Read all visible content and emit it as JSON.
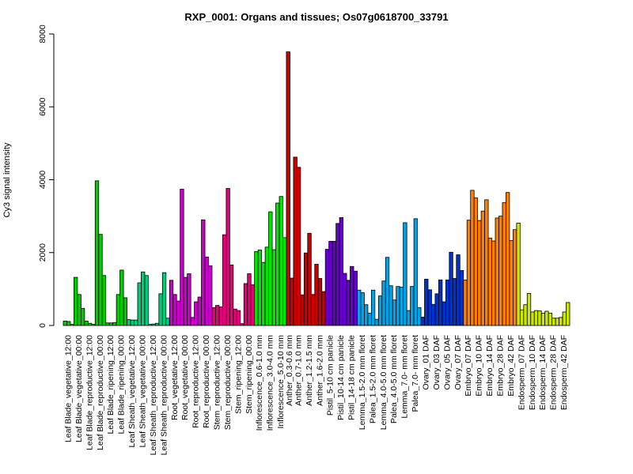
{
  "chart_data": {
    "type": "bar",
    "title": "RXP_0001: Organs and tissues; Os07g0618700_33791",
    "xlabel": "",
    "ylabel": "Cy3 signal intensity",
    "ylim": [
      0,
      8000
    ],
    "yticks": [
      0,
      2000,
      4000,
      6000,
      8000
    ],
    "grid": false,
    "legend": "none",
    "categories": [
      "Leaf Blade_vegetative_12:00",
      "Leaf Blade_vegetative_00:00",
      "Leaf Blade_reproductive_12:00",
      "Leaf Blade_reproductive_00:00",
      "Leaf Blade_ripening_12:00",
      "Leaf Blade_ripening_00:00",
      "Leaf Sheath_vegetative_12:00",
      "Leaf Sheath_vegetative_00:00",
      "Leaf Sheath_reproductive_12:00",
      "Leaf Sheath_reproductive_00:00",
      "Root_vegetative_12:00",
      "Root_vegetative_00:00",
      "Root_reproductive_12:00",
      "Root_reproductive_00:00",
      "Stem_reproductive_12:00",
      "Stem_reproductive_00:00",
      "Stem_ripening_12:00",
      "Stem_ripening_00:00",
      "Inflorescence_0.6-1.0 mm",
      "Inflorescence_3.0-4.0 mm",
      "Inflorescence_5.0-10 mm",
      "Anther_0.3-0.6 mm",
      "Anther_0.7-1.0 mm",
      "Anther_1.2-1.5 mm",
      "Anther_1.6-2.0 mm",
      "Pistil_5-10 cm panicle",
      "Pistil_10-14 cm panicle",
      "Pistil_14-18 cm panicle",
      "Lemma_1.5-2.0 mm floret",
      "Palea_1.5-2.0 mm floret",
      "Lemma_4.0-5.0 mm floret",
      "Palea_4.0-5.0 mm floret",
      "Lemma_7.0- mm floret",
      "Palea_7.0- mm floret",
      "Ovary_01 DAF",
      "Ovary_03 DAF",
      "Ovary_05 DAF",
      "Ovary_07 DAF",
      "Embryo_07 DAF",
      "Embryo_10 DAF",
      "Embryo_14 DAF",
      "Embryo_28 DAF",
      "Embryo_42 DAF",
      "Endosperm_07 DAF",
      "Endosperm_10 DAF",
      "Endosperm_14 DAF",
      "Endosperm_28 DAF",
      "Endosperm_42 DAF"
    ],
    "replicate_values": [
      [
        120,
        110,
        30
      ],
      [
        1320,
        850,
        470
      ],
      [
        120,
        60,
        30
      ],
      [
        3970,
        2500,
        1370
      ],
      [
        70,
        70,
        80
      ],
      [
        850,
        1520,
        760
      ],
      [
        160,
        150,
        150
      ],
      [
        1170,
        1470,
        1370
      ],
      [
        30,
        40,
        60
      ],
      [
        870,
        1450,
        200
      ],
      [
        1240,
        850,
        670
      ],
      [
        3740,
        1320,
        1420
      ],
      [
        220,
        650,
        780
      ],
      [
        2900,
        1880,
        1640
      ],
      [
        490,
        550,
        510
      ],
      [
        2490,
        3760,
        1660
      ],
      [
        450,
        410,
        50
      ],
      [
        1150,
        1420,
        1120
      ],
      [
        2030,
        2070,
        1730
      ],
      [
        2150,
        3120,
        2080
      ],
      [
        3360,
        3540,
        2410
      ],
      [
        7510,
        1300
      ],
      [
        4620,
        4340,
        840
      ],
      [
        1990,
        2530,
        850
      ],
      [
        1680,
        1290,
        930
      ],
      [
        2090,
        2310,
        2310
      ],
      [
        2800,
        2960,
        1430
      ],
      [
        1240,
        1620,
        1490
      ],
      [
        970,
        900,
        570
      ],
      [
        340,
        970,
        170
      ],
      [
        810,
        1220,
        1870
      ],
      [
        1090,
        700,
        1070
      ],
      [
        1050,
        2820,
        410
      ],
      [
        1070,
        2930,
        490
      ],
      [
        230,
        1270,
        980
      ],
      [
        580,
        870,
        1250
      ],
      [
        650,
        1250,
        2010
      ],
      [
        1290,
        1940,
        1510
      ],
      [
        1250,
        2890,
        3710
      ],
      [
        3500,
        2880,
        3140
      ],
      [
        3450,
        2400,
        2320
      ],
      [
        2950,
        3000,
        3370
      ],
      [
        3650,
        2330,
        2630
      ],
      [
        2810,
        430,
        570
      ],
      [
        880,
        370,
        410
      ],
      [
        400,
        340,
        390
      ],
      [
        340,
        200,
        200
      ],
      [
        220,
        370,
        630
      ]
    ],
    "group_colors": [
      "#00cc00",
      "#00cc00",
      "#00cc00",
      "#00cc00",
      "#00cc00",
      "#00cc00",
      "#00cc7a",
      "#00cc7a",
      "#00cc7a",
      "#00cc7a",
      "#cc00cc",
      "#cc00cc",
      "#cc00cc",
      "#cc00cc",
      "#e6007a",
      "#e6007a",
      "#e6007a",
      "#e6007a",
      "#00e600",
      "#00e600",
      "#00e600",
      "#cc0000",
      "#cc0000",
      "#cc0000",
      "#cc0000",
      "#6600cc",
      "#6600cc",
      "#6600cc",
      "#00a3e6",
      "#00a3e6",
      "#00a3e6",
      "#00a3e6",
      "#00a3e6",
      "#00a3e6",
      "#0033cc",
      "#0033cc",
      "#0033cc",
      "#0033cc",
      "#ff8000",
      "#ff8000",
      "#ff8000",
      "#ff8000",
      "#ff8000",
      "#cce600",
      "#cce600",
      "#cce600",
      "#cce600",
      "#cce600"
    ]
  }
}
